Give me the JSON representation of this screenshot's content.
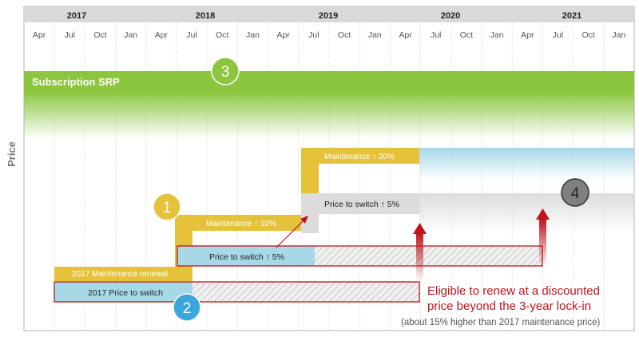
{
  "axis": {
    "years": [
      "2017",
      "2018",
      "2019",
      "2020",
      "2021"
    ],
    "months": [
      "Apr",
      "Jul",
      "Oct",
      "Jan",
      "Apr",
      "Jul",
      "Oct",
      "Jan",
      "Apr",
      "Jul",
      "Oct",
      "Jan",
      "Apr",
      "Jul",
      "Oct",
      "Jan",
      "Apr",
      "Jul",
      "Oct",
      "Jan"
    ],
    "y_label": "Price"
  },
  "bands": {
    "subscription_srp": "Subscription SRP",
    "maintenance_renewal_2017": "2017 Maintenance renewal",
    "maintenance_up_10": "Maintenance ↑ 10%",
    "maintenance_up_20": "Maintenance ↑ 20%",
    "price_to_switch_2017": "2017 Price to switch",
    "price_to_switch_up_5_a": "Price to switch ↑ 5%",
    "price_to_switch_up_5_b": "Price to switch ↑ 5%"
  },
  "markers": [
    "1",
    "2",
    "3",
    "4"
  ],
  "callout": {
    "line1": "Eligible to renew at a discounted",
    "line2": "price beyond the 3-year lock-in",
    "note": "(about 15% higher than 2017 maintenance price)"
  },
  "colors": {
    "green": "#8cc63f",
    "yellow": "#e6c23a",
    "light_blue": "#a6d8e8",
    "gray_box": "#dcdcdc",
    "red": "#c0141b",
    "header": "#d9d9d9"
  }
}
